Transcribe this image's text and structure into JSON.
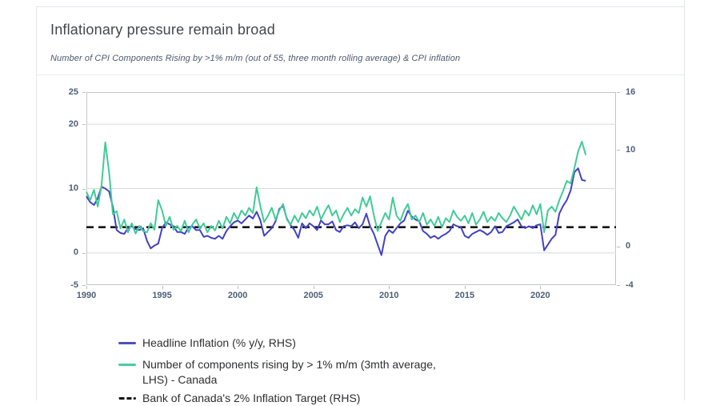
{
  "card": {
    "title": "Inflationary pressure remain broad",
    "subtitle": "Number of CPI Components Rising by >1% m/m (out of 55, three month rolling average) & CPI inflation"
  },
  "colors": {
    "headline_inflation_line": "#4342c4",
    "components_line": "#41cb97",
    "target_dashed_line": "#141414",
    "gridline": "#d7d9dc",
    "axis_text": "#4e5e78"
  },
  "legend": {
    "items": [
      {
        "name": "headline-inflation",
        "style": "solid",
        "color": "#4f4ec6",
        "label_lines": [
          "Headline Inflation (% y/y, RHS)"
        ]
      },
      {
        "name": "components-rising",
        "style": "solid",
        "color": "#45cf9c",
        "label_lines": [
          "Number of components rising by > 1% m/m (3mth average,",
          "LHS) - Canada"
        ]
      },
      {
        "name": "boc-target",
        "style": "dashed",
        "color": "#141414",
        "label_lines": [
          "Bank of Canada's 2% Inflation Target (RHS)"
        ]
      }
    ]
  },
  "chart_data": {
    "type": "line",
    "title": "Inflationary pressure remain broad",
    "subtitle": "Number of CPI Components Rising by >1% m/m (out of 55, three month rolling average) & CPI inflation",
    "x_axis": {
      "min": 1990,
      "max": 2025,
      "ticks": [
        1990,
        1995,
        2000,
        2005,
        2010,
        2015,
        2020
      ]
    },
    "left_axis": {
      "min": -5,
      "max": 25,
      "ticks": [
        25,
        20,
        10,
        0,
        -5
      ],
      "gridlines": [
        20,
        10,
        0
      ]
    },
    "right_axis": {
      "min": -4,
      "max": 16,
      "ticks": [
        16,
        10,
        0,
        -4
      ]
    },
    "reference_line": {
      "axis": "right",
      "value": 2,
      "label": "Bank of Canada's 2% Inflation Target (RHS)"
    },
    "series": [
      {
        "name": "Headline Inflation (% y/y, RHS)",
        "axis": "right",
        "color": "#4342c4",
        "x0": 1990,
        "dx": 0.25,
        "values": [
          5.2,
          4.6,
          4.3,
          5.0,
          6.2,
          6.0,
          5.7,
          4.1,
          1.7,
          1.4,
          1.3,
          1.9,
          2.1,
          1.8,
          1.7,
          1.9,
          0.6,
          -0.2,
          0.1,
          0.3,
          1.9,
          2.5,
          2.3,
          2.1,
          1.5,
          1.5,
          1.3,
          2.0,
          2.1,
          1.7,
          1.7,
          1.0,
          1.1,
          0.9,
          0.8,
          1.1,
          0.8,
          1.6,
          2.1,
          2.5,
          2.7,
          2.4,
          2.8,
          3.2,
          2.9,
          3.6,
          2.7,
          1.1,
          1.5,
          1.9,
          2.6,
          3.9,
          4.2,
          2.9,
          2.2,
          1.7,
          0.9,
          2.4,
          1.9,
          2.4,
          2.1,
          1.7,
          2.7,
          2.3,
          2.3,
          2.6,
          1.7,
          1.5,
          2.1,
          2.2,
          2.1,
          2.5,
          1.9,
          2.3,
          3.4,
          2.1,
          1.3,
          0.2,
          -0.9,
          1.1,
          1.7,
          1.4,
          1.9,
          2.4,
          2.7,
          3.7,
          3.1,
          2.8,
          2.6,
          1.6,
          1.3,
          0.9,
          1.1,
          0.8,
          1.1,
          1.3,
          1.6,
          2.3,
          2.1,
          2.0,
          1.1,
          0.9,
          1.3,
          1.5,
          1.7,
          1.5,
          1.2,
          1.5,
          2.1,
          1.4,
          1.5,
          2.1,
          2.3,
          2.5,
          2.8,
          2.1,
          1.9,
          2.1,
          1.9,
          2.2,
          2.3,
          -0.4,
          0.2,
          0.8,
          1.2,
          3.4,
          4.2,
          4.8,
          5.8,
          7.7,
          8.1,
          6.9,
          6.8
        ]
      },
      {
        "name": "Number of components rising by > 1% m/m (3mth average, LHS) - Canada",
        "axis": "left",
        "color": "#41cb97",
        "x0": 1990,
        "dx": 0.25,
        "values": [
          9.5,
          8.2,
          9.8,
          7.2,
          10.5,
          17.2,
          12.5,
          6.0,
          6.5,
          3.8,
          5.2,
          3.2,
          4.6,
          3.0,
          4.2,
          3.4,
          3.2,
          4.6,
          3.6,
          8.2,
          6.6,
          4.2,
          5.6,
          3.6,
          4.2,
          3.4,
          5.0,
          3.2,
          4.4,
          5.2,
          3.8,
          4.6,
          3.2,
          4.2,
          3.5,
          5.0,
          3.8,
          5.6,
          4.6,
          6.2,
          5.2,
          6.6,
          5.8,
          7.0,
          6.2,
          10.2,
          7.2,
          4.8,
          5.8,
          7.0,
          5.2,
          6.6,
          7.6,
          5.2,
          4.4,
          5.8,
          4.8,
          6.2,
          5.4,
          6.6,
          5.8,
          7.2,
          5.2,
          6.4,
          7.4,
          5.8,
          6.6,
          4.8,
          6.0,
          7.0,
          5.8,
          6.8,
          6.2,
          8.6,
          7.2,
          8.8,
          5.8,
          3.4,
          4.8,
          6.2,
          5.2,
          8.6,
          5.8,
          5.0,
          6.6,
          7.6,
          5.2,
          5.8,
          4.8,
          6.2,
          4.4,
          5.2,
          4.2,
          5.6,
          4.0,
          5.4,
          4.8,
          6.6,
          5.6,
          5.0,
          5.8,
          4.6,
          6.2,
          4.4,
          5.2,
          6.4,
          4.8,
          5.6,
          5.0,
          6.2,
          5.4,
          4.8,
          5.8,
          7.2,
          6.2,
          5.2,
          6.6,
          5.8,
          7.4,
          6.0,
          7.6,
          3.2,
          6.6,
          7.2,
          6.4,
          8.2,
          9.6,
          11.2,
          10.8,
          13.2,
          15.8,
          17.3,
          15.2
        ]
      }
    ]
  }
}
